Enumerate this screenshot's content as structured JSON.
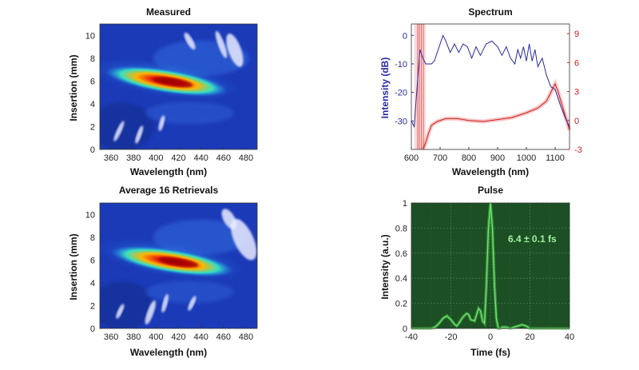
{
  "chart_data": [
    {
      "id": "measured",
      "type": "heatmap",
      "title": "Measured",
      "xlabel": "Wavelength (nm)",
      "ylabel": "Insertion (mm)",
      "xlim": [
        350,
        490
      ],
      "ylim": [
        0,
        11
      ],
      "xticks": [
        360,
        380,
        400,
        420,
        440,
        460,
        480
      ],
      "yticks": [
        0,
        2,
        4,
        6,
        8,
        10
      ],
      "peak": {
        "x": 415,
        "y": 5.9
      }
    },
    {
      "id": "spectrum",
      "type": "line",
      "title": "Spectrum",
      "xlabel": "Wavelength (nm)",
      "ylabel": "Intensity (dB)",
      "xlim": [
        600,
        1150
      ],
      "ylim": [
        -40,
        4
      ],
      "y2lim": [
        -3,
        10
      ],
      "xticks": [
        600,
        700,
        800,
        900,
        1000,
        1100
      ],
      "yticks": [
        0,
        -10,
        -20,
        -30
      ],
      "y2ticks": [
        9,
        6,
        3,
        0,
        -3
      ],
      "colors": {
        "intensity": "#2a2aa0",
        "phase": "#cc2020"
      },
      "series": [
        {
          "axis": "left",
          "x": [
            600,
            610,
            620,
            630,
            640,
            650,
            660,
            670,
            680,
            690,
            700,
            710,
            720,
            735,
            750,
            765,
            780,
            795,
            810,
            825,
            840,
            860,
            880,
            900,
            915,
            930,
            945,
            960,
            970,
            980,
            990,
            1000,
            1010,
            1020,
            1030,
            1040,
            1055,
            1070,
            1085,
            1100,
            1120,
            1140,
            1150
          ],
          "values": [
            -30,
            -32,
            -18,
            -5,
            -8,
            -10,
            -10,
            -10,
            -9,
            -6,
            -3,
            0,
            -2,
            -6,
            -3,
            -6,
            -3,
            -4,
            -8,
            -4,
            -7,
            -3,
            -2,
            -4,
            -7,
            -4,
            -8,
            -10,
            -5,
            -8,
            -4,
            -9,
            -3,
            -9,
            -5,
            -11,
            -8,
            -14,
            -18,
            -19,
            -25,
            -30,
            -32
          ]
        },
        {
          "axis": "right",
          "x": [
            640,
            650,
            660,
            670,
            690,
            720,
            760,
            800,
            850,
            900,
            950,
            1000,
            1040,
            1070,
            1090,
            1100,
            1110,
            1130,
            1150
          ],
          "values": [
            -3,
            -2.3,
            -1.3,
            -0.5,
            -0.1,
            0.2,
            0.2,
            0.0,
            -0.1,
            0.1,
            0.3,
            0.8,
            1.3,
            2.0,
            3.2,
            3.8,
            3.0,
            1.0,
            -1.0
          ]
        }
      ]
    },
    {
      "id": "retrieved",
      "type": "heatmap",
      "title": "Average 16 Retrievals",
      "xlabel": "Wavelength (nm)",
      "ylabel": "Insertion (mm)",
      "xlim": [
        350,
        490
      ],
      "ylim": [
        0,
        11
      ],
      "xticks": [
        360,
        380,
        400,
        420,
        440,
        460,
        480
      ],
      "yticks": [
        0,
        2,
        4,
        6,
        8,
        10
      ],
      "peak": {
        "x": 420,
        "y": 5.8
      }
    },
    {
      "id": "pulse",
      "type": "line",
      "title": "Pulse",
      "xlabel": "Time (fs)",
      "ylabel": "Intensity (a.u.)",
      "xlim": [
        -40,
        40
      ],
      "ylim": [
        0,
        1
      ],
      "xticks": [
        -40,
        -20,
        0,
        20,
        40
      ],
      "yticks": [
        0,
        0.2,
        0.4,
        0.6,
        0.8,
        1
      ],
      "annotation": "6.4 ± 0.1 fs",
      "colors": {
        "background": "#1d4f24",
        "line": "#6fe86f",
        "grid": "#3e7f48"
      },
      "series": [
        {
          "x": [
            -40,
            -30,
            -28,
            -26,
            -24,
            -22,
            -20,
            -18,
            -17,
            -16,
            -14,
            -12,
            -11,
            -10,
            -8,
            -7,
            -6,
            -5,
            -4,
            -3,
            -2,
            -1,
            0,
            1,
            2,
            3,
            4,
            5,
            6,
            8,
            10,
            12,
            14,
            16,
            18,
            20,
            30,
            40
          ],
          "values": [
            0,
            0,
            0.01,
            0.04,
            0.08,
            0.1,
            0.07,
            0.03,
            0.02,
            0.04,
            0.09,
            0.12,
            0.11,
            0.07,
            0.06,
            0.11,
            0.16,
            0.14,
            0.06,
            0.04,
            0.35,
            0.8,
            1.0,
            0.8,
            0.35,
            0.08,
            0.0,
            0.0,
            0.01,
            0.01,
            0.0,
            0.01,
            0.02,
            0.03,
            0.02,
            0.0,
            0.0,
            0.0
          ]
        }
      ]
    }
  ]
}
